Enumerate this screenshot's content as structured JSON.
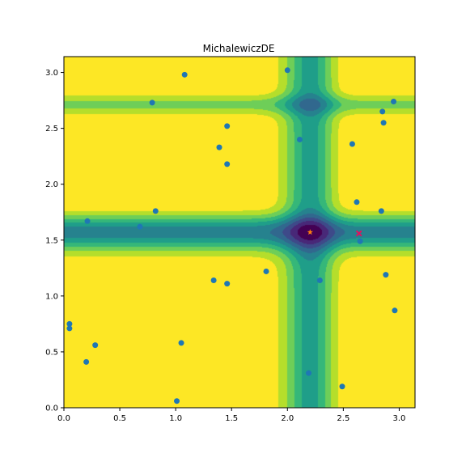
{
  "chart_data": {
    "type": "scatter",
    "title": "MichalewiczDE",
    "xlabel": "",
    "ylabel": "",
    "xlim": [
      0.0,
      3.14159
    ],
    "ylim": [
      0.0,
      3.14159
    ],
    "xticks": [
      0.0,
      0.5,
      1.0,
      1.5,
      2.0,
      2.5,
      3.0
    ],
    "yticks": [
      0.0,
      0.5,
      1.0,
      1.5,
      2.0,
      2.5,
      3.0
    ],
    "xtick_labels": [
      "0.0",
      "0.5",
      "1.0",
      "1.5",
      "2.0",
      "2.5",
      "3.0"
    ],
    "ytick_labels": [
      "0.0",
      "0.5",
      "1.0",
      "1.5",
      "2.0",
      "2.5",
      "3.0"
    ],
    "grid": false,
    "background": {
      "type": "contourf",
      "function": "michalewicz",
      "m": 10,
      "levels": 10,
      "colormap": "viridis"
    },
    "series": [
      {
        "marker": "circle",
        "color": "#1f77b4",
        "points": [
          [
            1.08,
            2.98
          ],
          [
            2.0,
            3.02
          ],
          [
            0.79,
            2.73
          ],
          [
            2.95,
            2.74
          ],
          [
            2.85,
            2.65
          ],
          [
            2.86,
            2.55
          ],
          [
            1.46,
            2.52
          ],
          [
            1.39,
            2.33
          ],
          [
            2.11,
            2.4
          ],
          [
            2.58,
            2.36
          ],
          [
            1.46,
            2.18
          ],
          [
            0.21,
            1.67
          ],
          [
            0.82,
            1.76
          ],
          [
            2.62,
            1.84
          ],
          [
            2.84,
            1.76
          ],
          [
            0.68,
            1.62
          ],
          [
            2.65,
            1.49
          ],
          [
            1.81,
            1.22
          ],
          [
            2.88,
            1.19
          ],
          [
            1.34,
            1.14
          ],
          [
            1.46,
            1.11
          ],
          [
            2.29,
            1.14
          ],
          [
            2.96,
            0.87
          ],
          [
            0.05,
            0.75
          ],
          [
            0.05,
            0.71
          ],
          [
            0.28,
            0.56
          ],
          [
            1.05,
            0.58
          ],
          [
            0.2,
            0.41
          ],
          [
            2.19,
            0.31
          ],
          [
            2.49,
            0.19
          ],
          [
            1.01,
            0.06
          ]
        ]
      },
      {
        "marker": "x",
        "color": "#e0115f",
        "points": [
          [
            2.64,
            1.56
          ]
        ]
      },
      {
        "marker": "star",
        "color": "#ff7f0e",
        "points": [
          [
            2.2029,
            1.5708
          ]
        ]
      }
    ]
  }
}
